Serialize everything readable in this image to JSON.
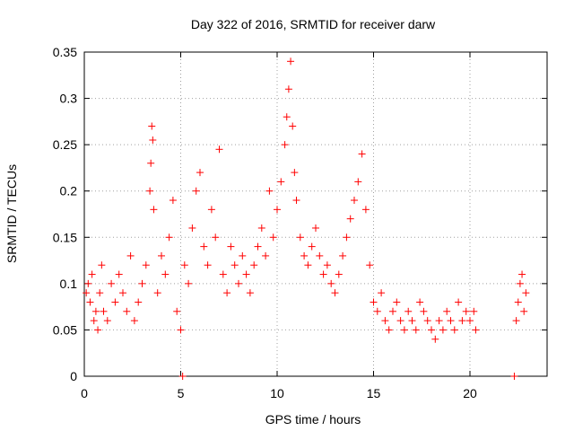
{
  "chart_data": {
    "type": "scatter",
    "title": "Day 322 of 2016, SRMTID for receiver darw",
    "xlabel": "GPS time / hours",
    "ylabel": "SRMTID / TECUs",
    "xlim": [
      0,
      24
    ],
    "ylim": [
      0,
      0.35
    ],
    "x_ticks": [
      0,
      5,
      10,
      15,
      20
    ],
    "x_tick_labels": [
      "0",
      "5",
      "10",
      "15",
      "20"
    ],
    "y_ticks": [
      0,
      0.05,
      0.1,
      0.15,
      0.2,
      0.25,
      0.3,
      0.35
    ],
    "y_tick_labels": [
      "0",
      "0.05",
      "0.1",
      "0.15",
      "0.2",
      "0.25",
      "0.3",
      "0.35"
    ],
    "grid": true,
    "marker": "plus",
    "marker_color": "#ff0000",
    "series": [
      {
        "name": "SRMTID",
        "points": [
          [
            0.1,
            0.09
          ],
          [
            0.2,
            0.1
          ],
          [
            0.3,
            0.08
          ],
          [
            0.4,
            0.11
          ],
          [
            0.5,
            0.06
          ],
          [
            0.6,
            0.07
          ],
          [
            0.7,
            0.05
          ],
          [
            0.8,
            0.09
          ],
          [
            0.9,
            0.12
          ],
          [
            1.0,
            0.07
          ],
          [
            1.2,
            0.06
          ],
          [
            1.4,
            0.1
          ],
          [
            1.6,
            0.08
          ],
          [
            1.8,
            0.11
          ],
          [
            2.0,
            0.09
          ],
          [
            2.2,
            0.07
          ],
          [
            2.4,
            0.13
          ],
          [
            2.6,
            0.06
          ],
          [
            2.8,
            0.08
          ],
          [
            3.0,
            0.1
          ],
          [
            3.2,
            0.12
          ],
          [
            3.4,
            0.2
          ],
          [
            3.45,
            0.23
          ],
          [
            3.5,
            0.27
          ],
          [
            3.55,
            0.255
          ],
          [
            3.6,
            0.18
          ],
          [
            3.8,
            0.09
          ],
          [
            4.0,
            0.13
          ],
          [
            4.2,
            0.11
          ],
          [
            4.4,
            0.15
          ],
          [
            4.6,
            0.19
          ],
          [
            4.8,
            0.07
          ],
          [
            5.0,
            0.05
          ],
          [
            5.2,
            0.12
          ],
          [
            5.4,
            0.1
          ],
          [
            5.6,
            0.16
          ],
          [
            5.8,
            0.2
          ],
          [
            6.0,
            0.22
          ],
          [
            6.2,
            0.14
          ],
          [
            6.4,
            0.12
          ],
          [
            6.6,
            0.18
          ],
          [
            6.8,
            0.15
          ],
          [
            7.0,
            0.245
          ],
          [
            7.2,
            0.11
          ],
          [
            7.4,
            0.09
          ],
          [
            7.6,
            0.14
          ],
          [
            7.8,
            0.12
          ],
          [
            8.0,
            0.1
          ],
          [
            8.2,
            0.13
          ],
          [
            8.4,
            0.11
          ],
          [
            8.6,
            0.09
          ],
          [
            8.8,
            0.12
          ],
          [
            9.0,
            0.14
          ],
          [
            9.2,
            0.16
          ],
          [
            9.4,
            0.13
          ],
          [
            9.6,
            0.2
          ],
          [
            9.8,
            0.15
          ],
          [
            10.0,
            0.18
          ],
          [
            10.2,
            0.21
          ],
          [
            10.4,
            0.25
          ],
          [
            10.5,
            0.28
          ],
          [
            10.6,
            0.31
          ],
          [
            10.7,
            0.34
          ],
          [
            10.8,
            0.27
          ],
          [
            10.9,
            0.22
          ],
          [
            11.0,
            0.19
          ],
          [
            11.2,
            0.15
          ],
          [
            11.4,
            0.13
          ],
          [
            11.6,
            0.12
          ],
          [
            11.8,
            0.14
          ],
          [
            12.0,
            0.16
          ],
          [
            12.2,
            0.13
          ],
          [
            12.4,
            0.11
          ],
          [
            12.6,
            0.12
          ],
          [
            12.8,
            0.1
          ],
          [
            13.0,
            0.09
          ],
          [
            13.2,
            0.11
          ],
          [
            13.4,
            0.13
          ],
          [
            13.6,
            0.15
          ],
          [
            13.8,
            0.17
          ],
          [
            14.0,
            0.19
          ],
          [
            14.2,
            0.21
          ],
          [
            14.4,
            0.24
          ],
          [
            14.6,
            0.18
          ],
          [
            14.8,
            0.12
          ],
          [
            15.0,
            0.08
          ],
          [
            15.2,
            0.07
          ],
          [
            15.4,
            0.09
          ],
          [
            15.6,
            0.06
          ],
          [
            15.8,
            0.05
          ],
          [
            16.0,
            0.07
          ],
          [
            16.2,
            0.08
          ],
          [
            16.4,
            0.06
          ],
          [
            16.6,
            0.05
          ],
          [
            16.8,
            0.07
          ],
          [
            17.0,
            0.06
          ],
          [
            17.2,
            0.05
          ],
          [
            17.4,
            0.08
          ],
          [
            17.6,
            0.07
          ],
          [
            17.8,
            0.06
          ],
          [
            18.0,
            0.05
          ],
          [
            18.2,
            0.04
          ],
          [
            18.4,
            0.06
          ],
          [
            18.6,
            0.05
          ],
          [
            18.8,
            0.07
          ],
          [
            19.0,
            0.06
          ],
          [
            19.2,
            0.05
          ],
          [
            19.4,
            0.08
          ],
          [
            19.6,
            0.06
          ],
          [
            19.8,
            0.07
          ],
          [
            20.0,
            0.06
          ],
          [
            20.2,
            0.07
          ],
          [
            20.3,
            0.05
          ],
          [
            22.4,
            0.06
          ],
          [
            22.5,
            0.08
          ],
          [
            22.6,
            0.1
          ],
          [
            22.7,
            0.11
          ],
          [
            22.8,
            0.07
          ],
          [
            22.9,
            0.09
          ],
          [
            5.1,
            0.0
          ],
          [
            22.3,
            0.0
          ]
        ]
      }
    ]
  }
}
